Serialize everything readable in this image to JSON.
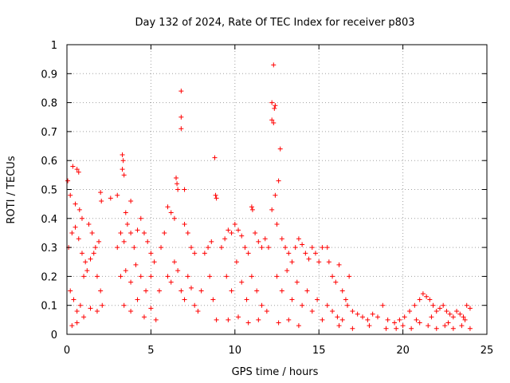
{
  "chart_data": {
    "type": "scatter",
    "title": "Day 132 of 2024, Rate Of TEC Index for receiver p803",
    "xlabel": "GPS time / hours",
    "ylabel": "ROTI / TECUs",
    "xlim": [
      0,
      25
    ],
    "ylim": [
      0,
      1
    ],
    "grid": true,
    "x_ticks": [
      0,
      5,
      10,
      15,
      20,
      25
    ],
    "x_tick_labels": [
      "0",
      "5",
      "10",
      "15",
      "20",
      "25"
    ],
    "y_ticks": [
      0,
      0.1,
      0.2,
      0.3,
      0.4,
      0.5,
      0.6,
      0.7,
      0.8,
      0.9,
      1
    ],
    "y_tick_labels": [
      "0",
      "0.1",
      "0.2",
      "0.3",
      "0.4",
      "0.5",
      "0.6",
      "0.7",
      "0.8",
      "0.9",
      "1"
    ],
    "marker": "+",
    "marker_color": "#ff0000",
    "series": [
      {
        "name": "ROTI",
        "points": [
          [
            0.05,
            0.53
          ],
          [
            0.2,
            0.48
          ],
          [
            0.35,
            0.58
          ],
          [
            0.5,
            0.45
          ],
          [
            0.6,
            0.57
          ],
          [
            0.7,
            0.56
          ],
          [
            0.75,
            0.43
          ],
          [
            0.9,
            0.4
          ],
          [
            0.1,
            0.3
          ],
          [
            0.3,
            0.35
          ],
          [
            0.5,
            0.37
          ],
          [
            0.7,
            0.33
          ],
          [
            0.9,
            0.28
          ],
          [
            1.1,
            0.25
          ],
          [
            1.3,
            0.38
          ],
          [
            1.5,
            0.35
          ],
          [
            1.7,
            0.3
          ],
          [
            1.9,
            0.32
          ],
          [
            2.0,
            0.49
          ],
          [
            2.05,
            0.46
          ],
          [
            1.0,
            0.2
          ],
          [
            1.2,
            0.22
          ],
          [
            1.4,
            0.26
          ],
          [
            1.6,
            0.28
          ],
          [
            1.8,
            0.2
          ],
          [
            2.0,
            0.15
          ],
          [
            0.2,
            0.15
          ],
          [
            0.4,
            0.12
          ],
          [
            0.6,
            0.08
          ],
          [
            0.8,
            0.1
          ],
          [
            0.3,
            0.03
          ],
          [
            0.6,
            0.04
          ],
          [
            1.0,
            0.06
          ],
          [
            1.4,
            0.09
          ],
          [
            1.8,
            0.08
          ],
          [
            2.1,
            0.1
          ],
          [
            2.6,
            0.47
          ],
          [
            3.0,
            0.48
          ],
          [
            3.3,
            0.62
          ],
          [
            3.35,
            0.6
          ],
          [
            3.3,
            0.57
          ],
          [
            3.4,
            0.55
          ],
          [
            3.5,
            0.42
          ],
          [
            3.8,
            0.46
          ],
          [
            3.0,
            0.3
          ],
          [
            3.2,
            0.35
          ],
          [
            3.4,
            0.32
          ],
          [
            3.6,
            0.38
          ],
          [
            3.8,
            0.35
          ],
          [
            4.0,
            0.3
          ],
          [
            4.2,
            0.36
          ],
          [
            4.4,
            0.4
          ],
          [
            4.6,
            0.35
          ],
          [
            4.8,
            0.32
          ],
          [
            5.0,
            0.28
          ],
          [
            3.2,
            0.2
          ],
          [
            3.5,
            0.22
          ],
          [
            3.8,
            0.18
          ],
          [
            4.1,
            0.24
          ],
          [
            4.4,
            0.2
          ],
          [
            4.7,
            0.15
          ],
          [
            5.0,
            0.2
          ],
          [
            5.2,
            0.25
          ],
          [
            3.4,
            0.1
          ],
          [
            3.8,
            0.08
          ],
          [
            4.2,
            0.12
          ],
          [
            4.6,
            0.06
          ],
          [
            5.0,
            0.09
          ],
          [
            5.3,
            0.05
          ],
          [
            5.5,
            0.15
          ],
          [
            5.6,
            0.3
          ],
          [
            5.8,
            0.35
          ],
          [
            6.0,
            0.44
          ],
          [
            6.2,
            0.42
          ],
          [
            6.4,
            0.4
          ],
          [
            6.5,
            0.54
          ],
          [
            6.55,
            0.52
          ],
          [
            6.6,
            0.5
          ],
          [
            6.8,
            0.84
          ],
          [
            6.8,
            0.75
          ],
          [
            6.8,
            0.71
          ],
          [
            7.0,
            0.5
          ],
          [
            7.0,
            0.38
          ],
          [
            7.2,
            0.35
          ],
          [
            7.4,
            0.3
          ],
          [
            7.6,
            0.28
          ],
          [
            6.0,
            0.2
          ],
          [
            6.2,
            0.18
          ],
          [
            6.4,
            0.25
          ],
          [
            6.6,
            0.22
          ],
          [
            6.8,
            0.15
          ],
          [
            7.0,
            0.12
          ],
          [
            7.2,
            0.2
          ],
          [
            7.4,
            0.16
          ],
          [
            7.6,
            0.1
          ],
          [
            7.8,
            0.08
          ],
          [
            8.0,
            0.15
          ],
          [
            8.2,
            0.28
          ],
          [
            8.4,
            0.3
          ],
          [
            8.6,
            0.32
          ],
          [
            8.8,
            0.61
          ],
          [
            8.85,
            0.48
          ],
          [
            8.9,
            0.47
          ],
          [
            8.5,
            0.2
          ],
          [
            8.7,
            0.12
          ],
          [
            8.9,
            0.05
          ],
          [
            9.2,
            0.3
          ],
          [
            9.4,
            0.33
          ],
          [
            9.6,
            0.36
          ],
          [
            9.8,
            0.35
          ],
          [
            10.0,
            0.38
          ],
          [
            10.2,
            0.36
          ],
          [
            10.4,
            0.34
          ],
          [
            10.6,
            0.3
          ],
          [
            10.8,
            0.28
          ],
          [
            11.0,
            0.44
          ],
          [
            11.05,
            0.43
          ],
          [
            11.2,
            0.35
          ],
          [
            11.4,
            0.32
          ],
          [
            11.6,
            0.3
          ],
          [
            11.8,
            0.33
          ],
          [
            12.0,
            0.3
          ],
          [
            9.5,
            0.2
          ],
          [
            9.8,
            0.15
          ],
          [
            10.1,
            0.25
          ],
          [
            10.4,
            0.18
          ],
          [
            10.7,
            0.12
          ],
          [
            11.0,
            0.2
          ],
          [
            11.3,
            0.15
          ],
          [
            11.6,
            0.1
          ],
          [
            11.9,
            0.08
          ],
          [
            9.6,
            0.05
          ],
          [
            10.2,
            0.06
          ],
          [
            10.8,
            0.04
          ],
          [
            11.4,
            0.05
          ],
          [
            12.3,
            0.93
          ],
          [
            12.2,
            0.8
          ],
          [
            12.4,
            0.79
          ],
          [
            12.35,
            0.78
          ],
          [
            12.2,
            0.74
          ],
          [
            12.3,
            0.73
          ],
          [
            12.7,
            0.64
          ],
          [
            12.6,
            0.53
          ],
          [
            12.4,
            0.48
          ],
          [
            12.2,
            0.43
          ],
          [
            12.5,
            0.38
          ],
          [
            12.8,
            0.33
          ],
          [
            13.0,
            0.3
          ],
          [
            13.2,
            0.28
          ],
          [
            13.4,
            0.25
          ],
          [
            13.6,
            0.3
          ],
          [
            13.8,
            0.33
          ],
          [
            14.0,
            0.31
          ],
          [
            14.2,
            0.28
          ],
          [
            14.4,
            0.26
          ],
          [
            14.6,
            0.3
          ],
          [
            14.8,
            0.28
          ],
          [
            15.0,
            0.25
          ],
          [
            15.2,
            0.3
          ],
          [
            12.5,
            0.2
          ],
          [
            12.8,
            0.15
          ],
          [
            13.1,
            0.22
          ],
          [
            13.4,
            0.12
          ],
          [
            13.7,
            0.18
          ],
          [
            14.0,
            0.1
          ],
          [
            14.3,
            0.15
          ],
          [
            14.6,
            0.08
          ],
          [
            14.9,
            0.12
          ],
          [
            15.2,
            0.05
          ],
          [
            12.6,
            0.04
          ],
          [
            13.2,
            0.05
          ],
          [
            13.8,
            0.03
          ],
          [
            15.5,
            0.3
          ],
          [
            15.6,
            0.25
          ],
          [
            15.8,
            0.2
          ],
          [
            16.0,
            0.18
          ],
          [
            16.2,
            0.24
          ],
          [
            16.4,
            0.15
          ],
          [
            16.6,
            0.12
          ],
          [
            16.8,
            0.2
          ],
          [
            15.5,
            0.1
          ],
          [
            15.8,
            0.08
          ],
          [
            16.1,
            0.06
          ],
          [
            16.4,
            0.05
          ],
          [
            16.7,
            0.1
          ],
          [
            17.0,
            0.08
          ],
          [
            17.3,
            0.07
          ],
          [
            17.6,
            0.06
          ],
          [
            17.9,
            0.05
          ],
          [
            18.2,
            0.07
          ],
          [
            18.5,
            0.06
          ],
          [
            18.8,
            0.1
          ],
          [
            19.1,
            0.05
          ],
          [
            16.2,
            0.03
          ],
          [
            17.0,
            0.02
          ],
          [
            18.0,
            0.03
          ],
          [
            19.0,
            0.02
          ],
          [
            19.5,
            0.04
          ],
          [
            19.8,
            0.05
          ],
          [
            20.1,
            0.06
          ],
          [
            20.4,
            0.08
          ],
          [
            20.7,
            0.1
          ],
          [
            21.0,
            0.12
          ],
          [
            21.2,
            0.14
          ],
          [
            21.4,
            0.13
          ],
          [
            21.6,
            0.12
          ],
          [
            21.8,
            0.1
          ],
          [
            22.0,
            0.08
          ],
          [
            22.2,
            0.09
          ],
          [
            22.4,
            0.1
          ],
          [
            22.6,
            0.08
          ],
          [
            22.8,
            0.07
          ],
          [
            23.0,
            0.06
          ],
          [
            23.2,
            0.08
          ],
          [
            23.4,
            0.07
          ],
          [
            23.6,
            0.06
          ],
          [
            23.8,
            0.1
          ],
          [
            24.0,
            0.09
          ],
          [
            19.6,
            0.02
          ],
          [
            20.0,
            0.03
          ],
          [
            20.5,
            0.02
          ],
          [
            21.0,
            0.04
          ],
          [
            21.5,
            0.03
          ],
          [
            22.0,
            0.02
          ],
          [
            22.5,
            0.03
          ],
          [
            23.0,
            0.02
          ],
          [
            23.5,
            0.03
          ],
          [
            24.0,
            0.02
          ],
          [
            20.8,
            0.05
          ],
          [
            21.7,
            0.06
          ],
          [
            22.7,
            0.04
          ],
          [
            23.7,
            0.05
          ]
        ]
      }
    ]
  }
}
